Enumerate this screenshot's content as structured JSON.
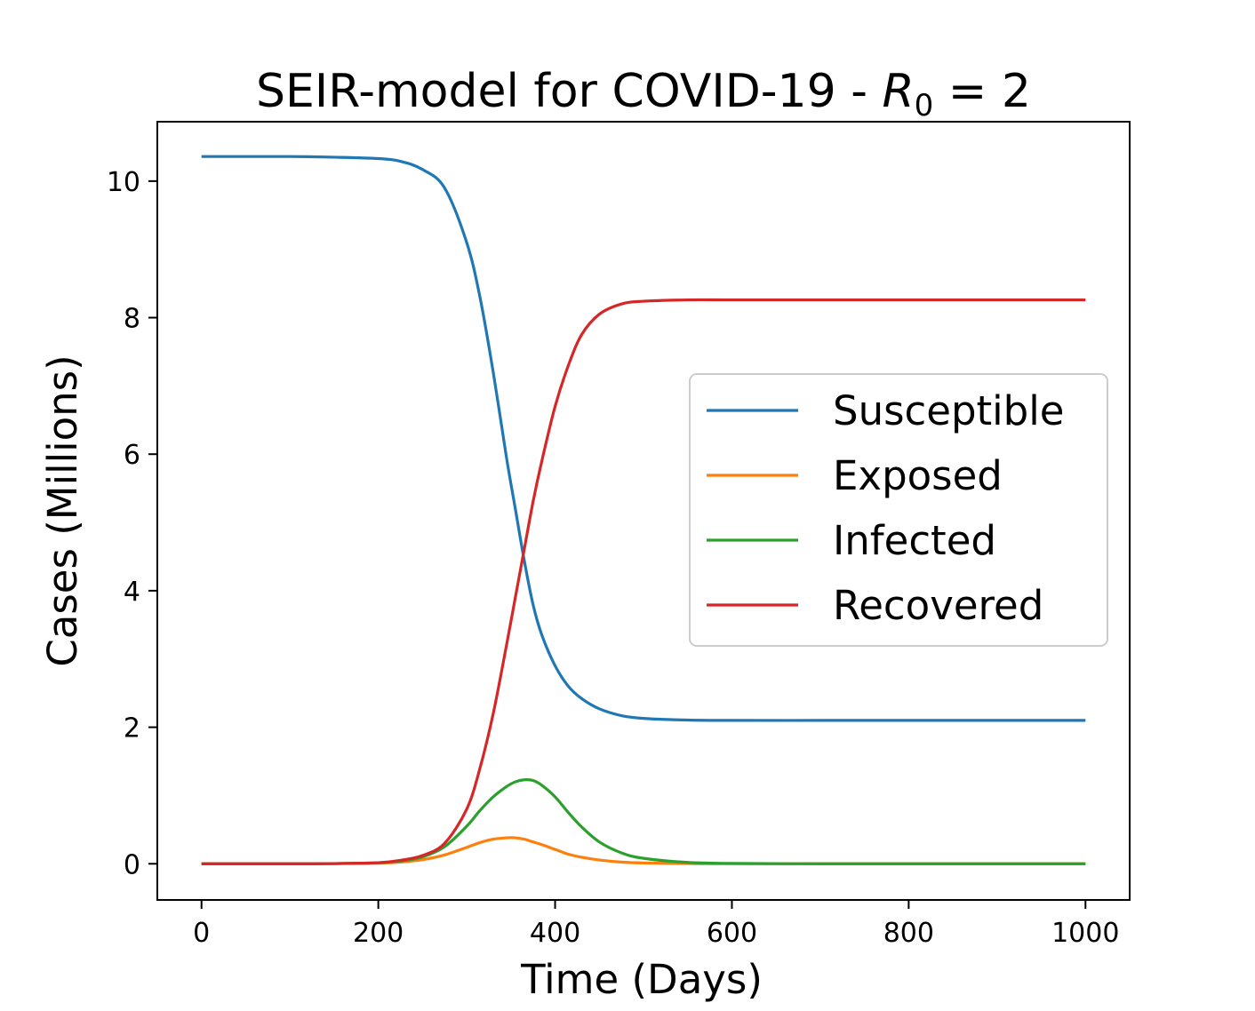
{
  "chart_data": {
    "type": "line",
    "title": {
      "prefix": "SEIR-model for COVID-19 - ",
      "symbol": "R",
      "subscript": "0",
      "suffix": " = 2"
    },
    "xlabel": "Time (Days)",
    "ylabel": "Cases (Millions)",
    "xlim": [
      -50,
      1050
    ],
    "ylim": [
      -0.53,
      10.87
    ],
    "xticks": [
      0,
      200,
      400,
      600,
      800,
      1000
    ],
    "xtick_labels": [
      "0",
      "200",
      "400",
      "600",
      "800",
      "1000"
    ],
    "yticks": [
      0,
      2,
      4,
      6,
      8,
      10
    ],
    "ytick_labels": [
      "0",
      "2",
      "4",
      "6",
      "8",
      "10"
    ],
    "grid": false,
    "legend_position": "center-right",
    "x": [
      0,
      50,
      100,
      150,
      200,
      225,
      250,
      275,
      300,
      315,
      330,
      345,
      355,
      365,
      375,
      385,
      400,
      415,
      430,
      450,
      475,
      500,
      550,
      600,
      700,
      800,
      900,
      1000
    ],
    "series": [
      {
        "name": "Susceptible",
        "color": "#1f77b4",
        "values": [
          10.36,
          10.36,
          10.36,
          10.35,
          10.33,
          10.29,
          10.17,
          9.9,
          9.1,
          8.3,
          7.2,
          5.95,
          5.2,
          4.45,
          3.8,
          3.35,
          2.9,
          2.6,
          2.42,
          2.27,
          2.17,
          2.13,
          2.105,
          2.1,
          2.1,
          2.1,
          2.1,
          2.1
        ]
      },
      {
        "name": "Exposed",
        "color": "#ff7f0e",
        "values": [
          0,
          0,
          0,
          0.002,
          0.01,
          0.025,
          0.06,
          0.13,
          0.24,
          0.31,
          0.36,
          0.38,
          0.38,
          0.36,
          0.32,
          0.28,
          0.21,
          0.14,
          0.095,
          0.055,
          0.025,
          0.012,
          0.003,
          0.001,
          0,
          0,
          0,
          0
        ]
      },
      {
        "name": "Infected",
        "color": "#2ca02c",
        "values": [
          0,
          0,
          0,
          0.003,
          0.015,
          0.04,
          0.1,
          0.25,
          0.55,
          0.78,
          0.98,
          1.13,
          1.2,
          1.23,
          1.22,
          1.15,
          0.98,
          0.75,
          0.54,
          0.32,
          0.16,
          0.08,
          0.02,
          0.005,
          0,
          0,
          0,
          0
        ]
      },
      {
        "name": "Recovered",
        "color": "#d62728",
        "values": [
          0,
          0,
          0,
          0.003,
          0.015,
          0.05,
          0.12,
          0.3,
          0.8,
          1.4,
          2.2,
          3.2,
          3.9,
          4.6,
          5.3,
          5.9,
          6.7,
          7.3,
          7.75,
          8.05,
          8.2,
          8.24,
          8.26,
          8.26,
          8.26,
          8.26,
          8.26,
          8.26
        ]
      }
    ]
  }
}
